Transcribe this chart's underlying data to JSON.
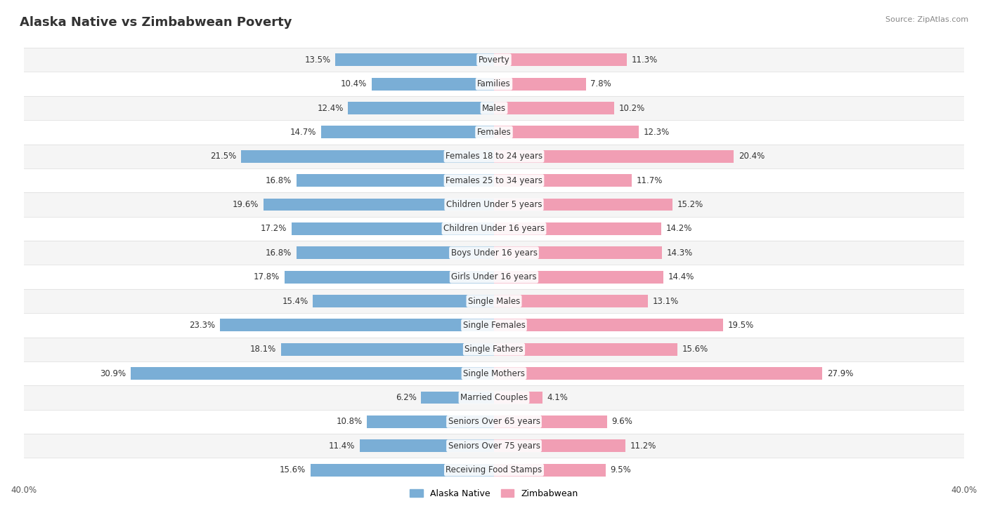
{
  "title": "Alaska Native vs Zimbabwean Poverty",
  "source": "Source: ZipAtlas.com",
  "categories": [
    "Poverty",
    "Families",
    "Males",
    "Females",
    "Females 18 to 24 years",
    "Females 25 to 34 years",
    "Children Under 5 years",
    "Children Under 16 years",
    "Boys Under 16 years",
    "Girls Under 16 years",
    "Single Males",
    "Single Females",
    "Single Fathers",
    "Single Mothers",
    "Married Couples",
    "Seniors Over 65 years",
    "Seniors Over 75 years",
    "Receiving Food Stamps"
  ],
  "alaska_native": [
    13.5,
    10.4,
    12.4,
    14.7,
    21.5,
    16.8,
    19.6,
    17.2,
    16.8,
    17.8,
    15.4,
    23.3,
    18.1,
    30.9,
    6.2,
    10.8,
    11.4,
    15.6
  ],
  "zimbabwean": [
    11.3,
    7.8,
    10.2,
    12.3,
    20.4,
    11.7,
    15.2,
    14.2,
    14.3,
    14.4,
    13.1,
    19.5,
    15.6,
    27.9,
    4.1,
    9.6,
    11.2,
    9.5
  ],
  "alaska_color": "#7aaed6",
  "zimbabwean_color": "#f19eb4",
  "row_bg_even": "#f5f5f5",
  "row_bg_odd": "#ffffff",
  "axis_max": 40.0,
  "title_fontsize": 13,
  "label_fontsize": 8.5,
  "category_fontsize": 8.5,
  "legend_fontsize": 9,
  "source_fontsize": 8,
  "bar_height": 0.52,
  "background_color": "#ffffff",
  "text_color": "#333333",
  "source_color": "#888888",
  "grid_color": "#e0e0e0"
}
